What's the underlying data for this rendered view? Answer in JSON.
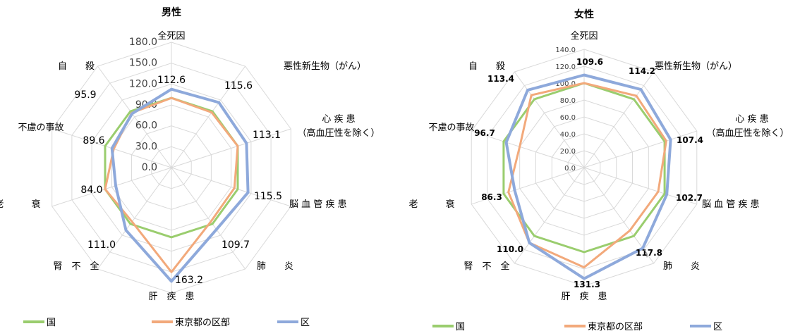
{
  "chart_data": [
    {
      "type": "radar",
      "title": "男性",
      "categories": [
        "全死因",
        "悪性新生物（がん）",
        "心 疾 患",
        "脳 血 管 疾 患",
        "肺　　炎",
        "肝　疾　患",
        "腎　不　全",
        "老　　　衰",
        "不慮の事故",
        "自　　殺"
      ],
      "category_sublabels": {
        "心 疾 患": "（高血圧性を除く）"
      },
      "rmax": 180,
      "ticks": [
        "0.0",
        "30.0",
        "60.0",
        "90.0",
        "120.0",
        "150.0",
        "180.0"
      ],
      "series": [
        {
          "name": "国",
          "color": "#9acd6e",
          "values": [
            100,
            100,
            100,
            100,
            100,
            100,
            100,
            100,
            100,
            100
          ]
        },
        {
          "name": "東京都の区部",
          "color": "#f2a97b",
          "values": [
            100,
            98,
            100,
            95,
            96,
            150,
            96,
            100,
            87,
            97
          ]
        },
        {
          "name": "区",
          "color": "#8ea9db",
          "values": [
            112.6,
            115.6,
            113.1,
            115.5,
            109.7,
            163.2,
            111.0,
            84.0,
            89.6,
            95.9
          ],
          "labels": [
            "112.6",
            "115.6",
            "113.1",
            "115.5",
            "109.7",
            "163.2",
            "111.0",
            "84.0",
            "89.6",
            "95.9"
          ]
        }
      ]
    },
    {
      "type": "radar",
      "title": "女性",
      "categories": [
        "全死因",
        "悪性新生物（がん）",
        "心 疾 患",
        "脳 血 管 疾 患",
        "肺　　炎",
        "肝　疾　患",
        "腎　不　全",
        "老　　　衰",
        "不慮の事故",
        "自　　殺"
      ],
      "category_sublabels": {
        "心 疾 患": "（高血圧性を除く）"
      },
      "rmax": 140,
      "ticks": [
        "0.0",
        "20.0",
        "40.0",
        "60.0",
        "80.0",
        "100.0",
        "120.0",
        "140.0"
      ],
      "series": [
        {
          "name": "国",
          "color": "#9acd6e",
          "values": [
            100,
            100,
            100,
            100,
            100,
            100,
            100,
            100,
            100,
            100
          ]
        },
        {
          "name": "東京都の区部",
          "color": "#f2a97b",
          "values": [
            100,
            105,
            102,
            92,
            92,
            118,
            110,
            94,
            80,
            106
          ]
        },
        {
          "name": "区",
          "color": "#8ea9db",
          "values": [
            109.6,
            114.2,
            107.4,
            102.7,
            117.8,
            131.3,
            110.0,
            86.3,
            96.7,
            113.4
          ],
          "labels": [
            "109.6",
            "114.2",
            "107.4",
            "102.7",
            "117.8",
            "131.3",
            "110.0",
            "86.3",
            "96.7",
            "113.4"
          ]
        }
      ]
    }
  ]
}
